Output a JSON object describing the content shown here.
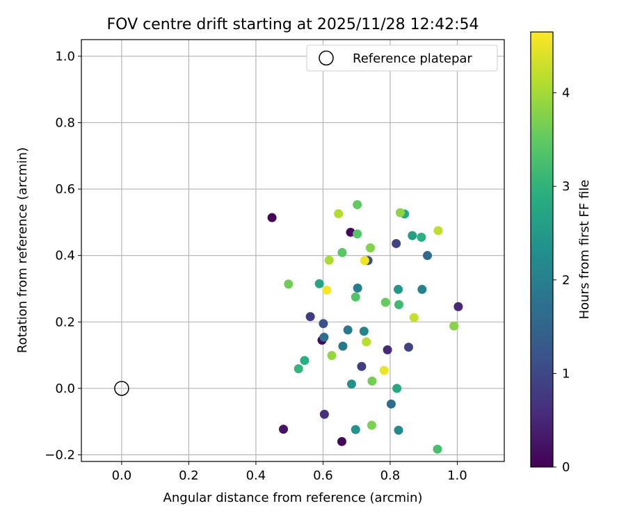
{
  "chart_data": {
    "type": "scatter",
    "title": "FOV centre drift starting at 2025/11/28 12:42:54",
    "xlabel": "Angular distance from reference (arcmin)",
    "ylabel": "Rotation from reference (arcmin)",
    "xlim": [
      -0.12,
      1.14
    ],
    "ylim": [
      -0.22,
      1.05
    ],
    "xticks": [
      0.0,
      0.2,
      0.4,
      0.6,
      0.8,
      1.0
    ],
    "xtick_labels": [
      "0.0",
      "0.2",
      "0.4",
      "0.6",
      "0.8",
      "1.0"
    ],
    "yticks": [
      -0.2,
      0.0,
      0.2,
      0.4,
      0.6,
      0.8,
      1.0
    ],
    "ytick_labels": [
      "−0.2",
      "0.0",
      "0.2",
      "0.4",
      "0.6",
      "0.8",
      "1.0"
    ],
    "grid": true,
    "legend": {
      "position": "top-right",
      "entries": [
        {
          "label": "Reference platepar",
          "marker": "open-circle"
        }
      ]
    },
    "reference_point": {
      "x": 0.0,
      "y": 0.0
    },
    "colorbar": {
      "label": "Hours from first FF file",
      "colormap": "viridis",
      "range": [
        0,
        4.65
      ],
      "ticks": [
        0,
        1,
        2,
        3,
        4
      ],
      "tick_labels": [
        "0",
        "1",
        "2",
        "3",
        "4"
      ]
    },
    "points": [
      {
        "x": 0.448,
        "y": 0.514,
        "h": 0.05
      },
      {
        "x": 0.682,
        "y": 0.47,
        "h": 0.1
      },
      {
        "x": 0.597,
        "y": 0.145,
        "h": 0.15
      },
      {
        "x": 0.656,
        "y": -0.16,
        "h": 0.1
      },
      {
        "x": 0.482,
        "y": -0.123,
        "h": 0.25
      },
      {
        "x": 1.003,
        "y": 0.246,
        "h": 0.5
      },
      {
        "x": 0.604,
        "y": -0.078,
        "h": 0.65
      },
      {
        "x": 0.562,
        "y": 0.216,
        "h": 0.8
      },
      {
        "x": 0.792,
        "y": 0.116,
        "h": 0.55
      },
      {
        "x": 0.715,
        "y": 0.066,
        "h": 0.85
      },
      {
        "x": 0.818,
        "y": 0.436,
        "h": 0.9
      },
      {
        "x": 0.855,
        "y": 0.124,
        "h": 0.95
      },
      {
        "x": 0.734,
        "y": 0.385,
        "h": 1.1
      },
      {
        "x": 0.601,
        "y": 0.195,
        "h": 1.15
      },
      {
        "x": 0.911,
        "y": 0.4,
        "h": 1.6
      },
      {
        "x": 0.803,
        "y": -0.047,
        "h": 1.65
      },
      {
        "x": 0.603,
        "y": 0.154,
        "h": 1.7
      },
      {
        "x": 0.659,
        "y": 0.127,
        "h": 1.85
      },
      {
        "x": 0.703,
        "y": 0.302,
        "h": 1.95
      },
      {
        "x": 0.895,
        "y": 0.298,
        "h": 2.05
      },
      {
        "x": 0.674,
        "y": 0.176,
        "h": 1.9
      },
      {
        "x": 0.722,
        "y": 0.172,
        "h": 2.1
      },
      {
        "x": 0.825,
        "y": -0.126,
        "h": 2.2
      },
      {
        "x": 0.685,
        "y": 0.013,
        "h": 2.35
      },
      {
        "x": 0.697,
        "y": -0.124,
        "h": 2.4
      },
      {
        "x": 0.824,
        "y": 0.298,
        "h": 2.45
      },
      {
        "x": 0.866,
        "y": 0.46,
        "h": 2.6
      },
      {
        "x": 0.589,
        "y": 0.315,
        "h": 2.7
      },
      {
        "x": 0.82,
        "y": 0.0,
        "h": 2.75
      },
      {
        "x": 0.843,
        "y": 0.525,
        "h": 2.85
      },
      {
        "x": 0.893,
        "y": 0.455,
        "h": 2.95
      },
      {
        "x": 0.545,
        "y": 0.084,
        "h": 2.9
      },
      {
        "x": 0.527,
        "y": 0.059,
        "h": 3.05
      },
      {
        "x": 0.826,
        "y": 0.252,
        "h": 3.15
      },
      {
        "x": 0.941,
        "y": -0.183,
        "h": 3.25
      },
      {
        "x": 0.697,
        "y": 0.275,
        "h": 3.35
      },
      {
        "x": 0.702,
        "y": 0.465,
        "h": 3.4
      },
      {
        "x": 0.702,
        "y": 0.553,
        "h": 3.5
      },
      {
        "x": 0.657,
        "y": 0.409,
        "h": 3.45
      },
      {
        "x": 0.786,
        "y": 0.259,
        "h": 3.55
      },
      {
        "x": 0.497,
        "y": 0.314,
        "h": 3.6
      },
      {
        "x": 0.746,
        "y": 0.022,
        "h": 3.65
      },
      {
        "x": 0.745,
        "y": -0.111,
        "h": 3.7
      },
      {
        "x": 0.741,
        "y": 0.423,
        "h": 3.75
      },
      {
        "x": 0.99,
        "y": 0.188,
        "h": 3.8
      },
      {
        "x": 0.83,
        "y": 0.529,
        "h": 3.85
      },
      {
        "x": 0.626,
        "y": 0.099,
        "h": 3.9
      },
      {
        "x": 0.618,
        "y": 0.386,
        "h": 4.05
      },
      {
        "x": 0.646,
        "y": 0.526,
        "h": 4.1
      },
      {
        "x": 0.729,
        "y": 0.14,
        "h": 4.15
      },
      {
        "x": 0.943,
        "y": 0.475,
        "h": 4.2
      },
      {
        "x": 0.871,
        "y": 0.213,
        "h": 4.25
      },
      {
        "x": 0.611,
        "y": 0.296,
        "h": 4.6
      },
      {
        "x": 0.724,
        "y": 0.385,
        "h": 4.55
      },
      {
        "x": 0.782,
        "y": 0.054,
        "h": 4.5
      }
    ]
  }
}
